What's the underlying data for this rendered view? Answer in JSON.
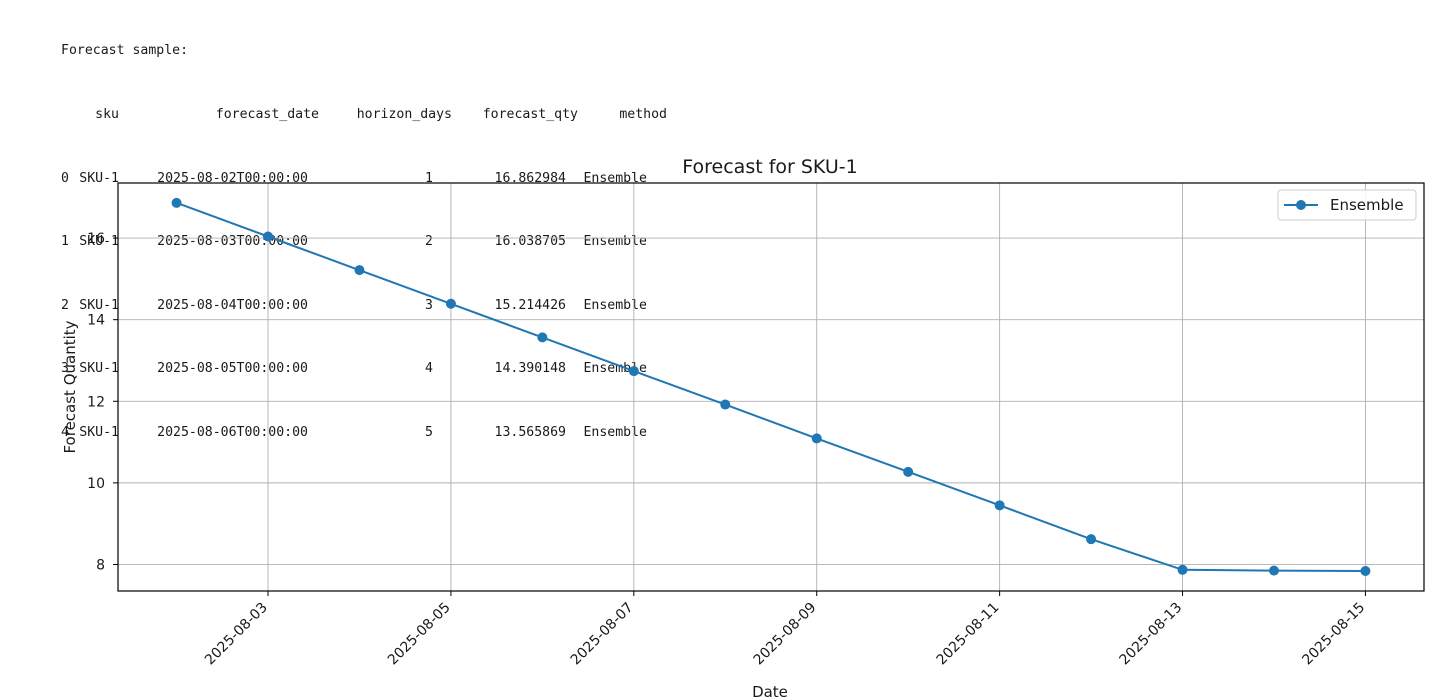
{
  "output": {
    "heading": "Forecast sample:",
    "table": {
      "columns": [
        "sku",
        "forecast_date",
        "horizon_days",
        "forecast_qty",
        "method"
      ],
      "rows": [
        {
          "index": "0",
          "sku": "SKU-1",
          "forecast_date": "2025-08-02T00:00:00",
          "horizon_days": "1",
          "forecast_qty": "16.862984",
          "method": "Ensemble"
        },
        {
          "index": "1",
          "sku": "SKU-1",
          "forecast_date": "2025-08-03T00:00:00",
          "horizon_days": "2",
          "forecast_qty": "16.038705",
          "method": "Ensemble"
        },
        {
          "index": "2",
          "sku": "SKU-1",
          "forecast_date": "2025-08-04T00:00:00",
          "horizon_days": "3",
          "forecast_qty": "15.214426",
          "method": "Ensemble"
        },
        {
          "index": "3",
          "sku": "SKU-1",
          "forecast_date": "2025-08-05T00:00:00",
          "horizon_days": "4",
          "forecast_qty": "14.390148",
          "method": "Ensemble"
        },
        {
          "index": "4",
          "sku": "SKU-1",
          "forecast_date": "2025-08-06T00:00:00",
          "horizon_days": "5",
          "forecast_qty": "13.565869",
          "method": "Ensemble"
        }
      ]
    }
  },
  "chart_data": {
    "type": "line",
    "title": "Forecast for SKU-1",
    "xlabel": "Date",
    "ylabel": "Forecast Quantity",
    "x": [
      "2025-08-02",
      "2025-08-03",
      "2025-08-04",
      "2025-08-05",
      "2025-08-06",
      "2025-08-07",
      "2025-08-08",
      "2025-08-09",
      "2025-08-10",
      "2025-08-11",
      "2025-08-12",
      "2025-08-13",
      "2025-08-14",
      "2025-08-15"
    ],
    "series": [
      {
        "name": "Ensemble",
        "color": "#1f77b4",
        "marker": "circle",
        "values": [
          16.862984,
          16.038705,
          15.214426,
          14.390148,
          13.565869,
          12.74,
          11.92,
          11.09,
          10.27,
          9.45,
          8.62,
          7.87,
          7.85,
          7.84
        ]
      }
    ],
    "xticks": [
      "2025-08-03",
      "2025-08-05",
      "2025-08-07",
      "2025-08-09",
      "2025-08-11",
      "2025-08-13",
      "2025-08-15"
    ],
    "yticks": [
      8,
      10,
      12,
      14,
      16
    ],
    "xlim": [
      "2025-08-01T08:38",
      "2025-08-15T15:22"
    ],
    "ylim": [
      7.35,
      17.35
    ],
    "grid": true,
    "legend": "top-right"
  }
}
